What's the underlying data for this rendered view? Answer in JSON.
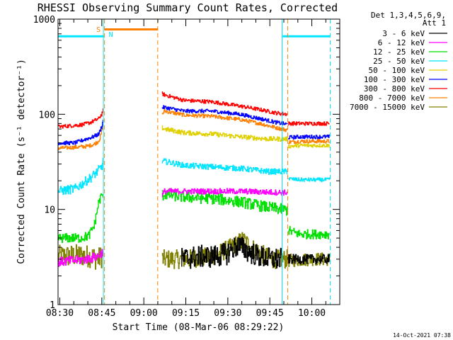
{
  "chart_data": {
    "type": "line",
    "title": "RHESSI Observing Summary Count Rates, Corrected",
    "xlabel": "Start Time (08-Mar-06 08:29:22)",
    "ylabel": "Corrected Count Rate (s⁻¹ detector⁻¹)",
    "x_ticks": [
      "08:30",
      "08:45",
      "09:00",
      "09:15",
      "09:30",
      "09:45",
      "10:00"
    ],
    "x_tick_minutes": [
      0.63,
      15.63,
      30.63,
      45.63,
      60.63,
      75.63,
      90.63
    ],
    "xlim_minutes": [
      0,
      100.6
    ],
    "y_ticks": [
      "1",
      "10",
      "100",
      "1000"
    ],
    "y_scale": "log",
    "ylim": [
      1,
      1000
    ],
    "legend_header": [
      "Det 1,3,4,5,6,9,",
      "Att 1"
    ],
    "legend_position": "right",
    "timestamp": "14-Oct-2021 07:38",
    "markers": {
      "saa_label": "S",
      "night_label": "N",
      "saa_color": "#ff8000",
      "night_color": "#00e5ff",
      "saa_bar": {
        "start": 16.5,
        "end": 35.6,
        "value": 780
      },
      "night_bar_1": {
        "start": 0,
        "end": 16.4,
        "value": 660
      },
      "night_bar_2": {
        "start": 80.2,
        "end": 97.1,
        "value": 660
      },
      "lines": [
        {
          "x": 16.2,
          "color": "#00e5ff",
          "style": "solid"
        },
        {
          "x": 16.6,
          "color": "#ff8000",
          "style": "dashed"
        },
        {
          "x": 35.6,
          "color": "#ff8000",
          "style": "dashed"
        },
        {
          "x": 80.0,
          "color": "#00e5ff",
          "style": "solid"
        },
        {
          "x": 82.0,
          "color": "#ff8000",
          "style": "dashed"
        },
        {
          "x": 97.2,
          "color": "#00e5ff",
          "style": "dashed"
        }
      ]
    },
    "series": [
      {
        "name": "3 - 6 keV",
        "color": "#000000",
        "segments": [
          {
            "x": [
              44,
              50,
              55,
              60,
              64,
              68,
              72,
              76,
              80
            ],
            "y": [
              3.0,
              3.2,
              3.2,
              3.4,
              4.2,
              3.6,
              3.2,
              3.0,
              3.0
            ],
            "noise": 0.12
          },
          {
            "x": [
              82,
              90,
              97
            ],
            "y": [
              3,
              3,
              3
            ],
            "noise": 0.05
          }
        ]
      },
      {
        "name": "6 - 12 keV",
        "color": "#ff00ff",
        "segments": [
          {
            "x": [
              0,
              10,
              14,
              16
            ],
            "y": [
              2.8,
              3.0,
              3.2,
              3.6
            ],
            "noise": 0.05
          },
          {
            "x": [
              37.1,
              38,
              45,
              55,
              65,
              75,
              82
            ],
            "y": [
              14,
              15.5,
              15.5,
              15.5,
              15.5,
              15.2,
              15
            ],
            "noise": 0.03
          }
        ]
      },
      {
        "name": "12 - 25 keV",
        "color": "#00e000",
        "segments": [
          {
            "x": [
              0,
              8,
              11,
              13,
              14.5,
              15.6,
              16.1
            ],
            "y": [
              5.0,
              5.0,
              5.3,
              7.0,
              12,
              14,
              14
            ],
            "noise": 0.05
          },
          {
            "x": [
              37.1,
              38,
              45,
              55,
              65,
              75,
              82
            ],
            "y": [
              14,
              14.5,
              13.5,
              13.0,
              12.0,
              10.5,
              9.8
            ],
            "noise": 0.06
          },
          {
            "x": [
              82.2,
              86,
              97
            ],
            "y": [
              6.0,
              5.5,
              5.5
            ],
            "noise": 0.05
          }
        ]
      },
      {
        "name": "25 - 50 keV",
        "color": "#00e5ff",
        "segments": [
          {
            "x": [
              0,
              6,
              9,
              12,
              14,
              15.5,
              16.1
            ],
            "y": [
              15.5,
              16.5,
              19,
              22,
              25,
              28,
              32
            ],
            "noise": 0.05
          },
          {
            "x": [
              37.1,
              38,
              45,
              55,
              65,
              75,
              82
            ],
            "y": [
              32,
              32,
              29,
              28,
              27,
              25,
              25
            ],
            "noise": 0.03
          },
          {
            "x": [
              82.2,
              86,
              97
            ],
            "y": [
              21,
              20.5,
              20.5
            ],
            "noise": 0.02
          }
        ]
      },
      {
        "name": "50 - 100 keV",
        "color": "#e0d000",
        "segments": [
          {
            "x": [
              37.1,
              38,
              45,
              55,
              65,
              75,
              82
            ],
            "y": [
              72,
              70,
              64,
              62,
              58,
              55,
              55
            ],
            "noise": 0.025
          },
          {
            "x": [
              82.2,
              86,
              97
            ],
            "y": [
              46,
              47,
              47
            ],
            "noise": 0.02
          }
        ]
      },
      {
        "name": "100 - 300 keV",
        "color": "#0000ff",
        "segments": [
          {
            "x": [
              0,
              6,
              10,
              12.5,
              13.5,
              14.5,
              15.5,
              16.1
            ],
            "y": [
              50,
              50,
              55,
              58,
              60,
              62,
              74,
              88
            ],
            "noise": 0.02
          },
          {
            "x": [
              37.1,
              38,
              45,
              55,
              65,
              72,
              78,
              82
            ],
            "y": [
              118,
              118,
              108,
              108,
              100,
              90,
              82,
              78
            ],
            "noise": 0.02
          },
          {
            "x": [
              82.2,
              86,
              97
            ],
            "y": [
              57,
              58,
              58
            ],
            "noise": 0.02
          }
        ]
      },
      {
        "name": "300 - 800 keV",
        "color": "#ff0000",
        "segments": [
          {
            "x": [
              0,
              5,
              9,
              11.5,
              13,
              14.5,
              15.5,
              16.1
            ],
            "y": [
              74,
              76,
              78,
              82,
              86,
              90,
              100,
              112
            ],
            "noise": 0.02
          },
          {
            "x": [
              37.1,
              38,
              45,
              55,
              65,
              72,
              78,
              82
            ],
            "y": [
              165,
              160,
              140,
              135,
              122,
              112,
              103,
              100
            ],
            "noise": 0.02
          },
          {
            "x": [
              82.2,
              86,
              97
            ],
            "y": [
              80,
              80,
              80
            ],
            "noise": 0.02
          }
        ]
      },
      {
        "name": "800 - 7000 keV",
        "color": "#ff8000",
        "segments": [
          {
            "x": [
              0,
              6,
              10,
              12.5,
              14,
              15,
              15.6,
              16.1
            ],
            "y": [
              44,
              45,
              46,
              48,
              51,
              56,
              68,
              85
            ],
            "noise": 0.02
          },
          {
            "x": [
              37.1,
              38,
              45,
              55,
              65,
              72,
              78,
              82
            ],
            "y": [
              100,
              108,
              98,
              95,
              88,
              80,
              72,
              68
            ],
            "noise": 0.02
          },
          {
            "x": [
              82.2,
              86,
              97
            ],
            "y": [
              51,
              52,
              52
            ],
            "noise": 0.02
          }
        ]
      },
      {
        "name": "7000 - 15000 keV",
        "color": "#808000",
        "segments": [
          {
            "x": [
              0,
              8,
              12,
              14,
              15.6,
              16.1
            ],
            "y": [
              3.2,
              3.3,
              3.2,
              3.0,
              3.2,
              3.4
            ],
            "noise": 0.12
          },
          {
            "x": [
              37.1,
              45,
              55,
              62,
              66,
              70,
              76,
              82
            ],
            "y": [
              3.0,
              3.0,
              3.2,
              4.0,
              4.8,
              3.8,
              3.0,
              3.0
            ],
            "noise": 0.1
          },
          {
            "x": [
              82.2,
              90,
              97
            ],
            "y": [
              2.9,
              3.0,
              3.0
            ],
            "noise": 0.07
          }
        ]
      }
    ]
  }
}
